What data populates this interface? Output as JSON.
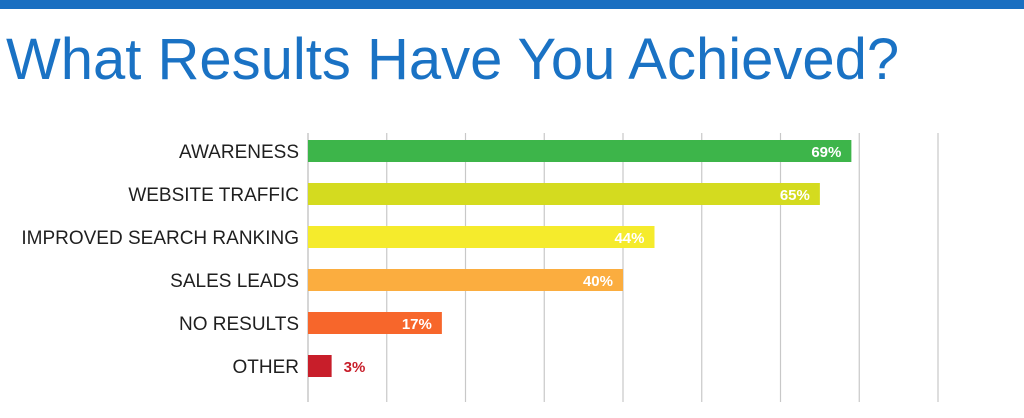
{
  "header": {
    "title": "What Results Have You Achieved?"
  },
  "colors": {
    "accent_rule": "#1a6fc1",
    "title": "#1a72c4",
    "grid": "#c8c8c8",
    "bar_colors": [
      "#3db54a",
      "#d4db1f",
      "#f5eb2c",
      "#fbad3f",
      "#f7662b",
      "#c81e2a"
    ],
    "value_label_inside": "#ffffff",
    "value_label_outside": "#c81e2a"
  },
  "chart_data": {
    "type": "bar",
    "orientation": "horizontal",
    "title": "What Results Have You Achieved?",
    "categories": [
      "AWARENESS",
      "WEBSITE TRAFFIC",
      "IMPROVED SEARCH RANKING",
      "SALES LEADS",
      "NO RESULTS",
      "OTHER"
    ],
    "values": [
      69,
      65,
      44,
      40,
      17,
      3
    ],
    "value_labels": [
      "69%",
      "65%",
      "44%",
      "40%",
      "17%",
      "3%"
    ],
    "xlim": [
      0,
      80
    ],
    "grid_step": 10,
    "grid": true,
    "legend": "none"
  }
}
